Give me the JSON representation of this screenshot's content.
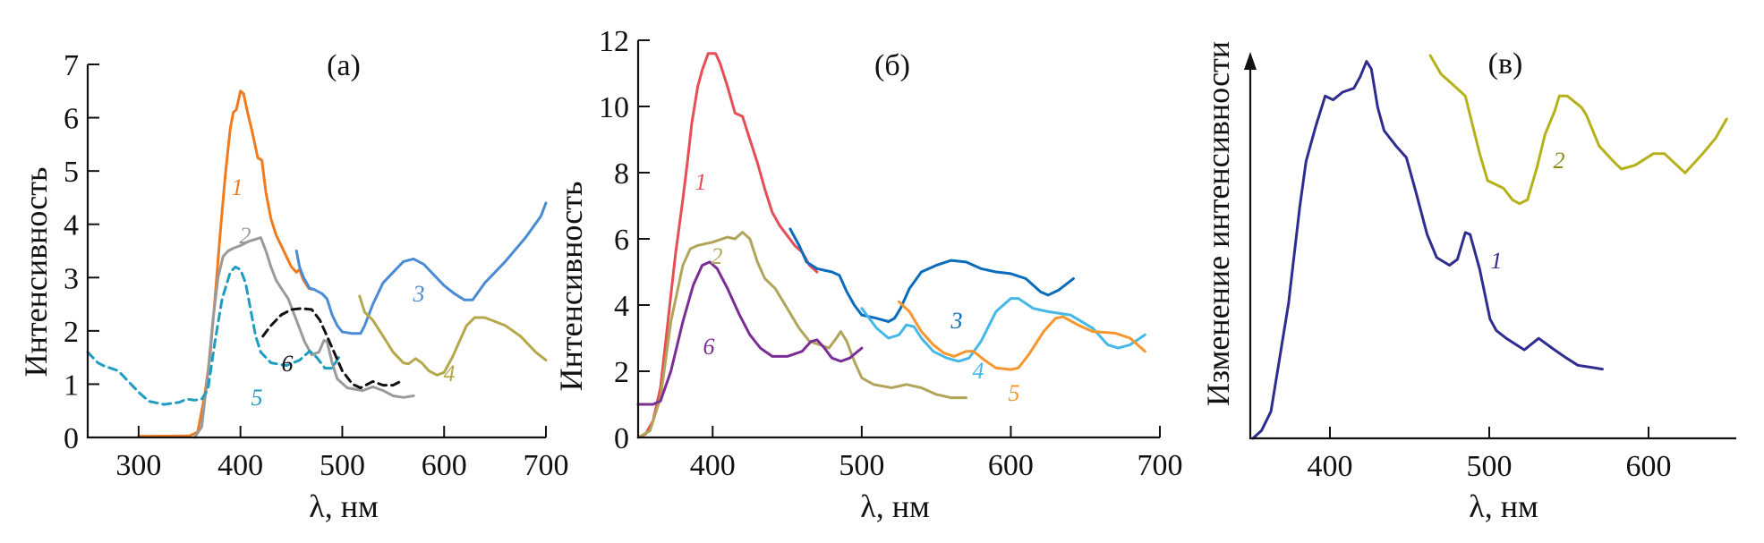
{
  "chart_data": [
    {
      "type": "line",
      "panel_label": "(а)",
      "xlabel": "λ, нм",
      "ylabel": "Интенсивность",
      "xlim": [
        250,
        700
      ],
      "ylim": [
        0,
        7
      ],
      "xticks": [
        300,
        400,
        500,
        600,
        700
      ],
      "yticks": [
        0,
        1,
        2,
        3,
        4,
        5,
        6,
        7
      ],
      "grid": false,
      "series": [
        {
          "name": "1",
          "color": "#f07a1e",
          "dashed": false,
          "x": [
            300,
            350,
            358,
            365,
            370,
            375,
            380,
            385,
            390,
            393,
            396,
            400,
            403,
            407,
            412,
            417,
            421,
            425,
            430,
            435,
            440,
            445,
            450,
            455,
            458,
            462,
            467,
            470
          ],
          "y": [
            0.02,
            0.03,
            0.1,
            0.8,
            1.5,
            2.6,
            3.8,
            4.9,
            5.8,
            6.1,
            6.15,
            6.5,
            6.45,
            6.1,
            5.7,
            5.25,
            5.2,
            4.6,
            4.1,
            3.8,
            3.6,
            3.4,
            3.2,
            3.1,
            3.15,
            2.95,
            2.8,
            2.78
          ]
        },
        {
          "name": "2",
          "color": "#9a9a9a",
          "dashed": false,
          "x": [
            355,
            362,
            368,
            373,
            378,
            383,
            388,
            393,
            400,
            408,
            415,
            420,
            425,
            430,
            435,
            440,
            447,
            455,
            463,
            470,
            477,
            482,
            485,
            490,
            495,
            505,
            520,
            530,
            540,
            550,
            560,
            570
          ],
          "y": [
            0.0,
            0.2,
            1.2,
            2.2,
            3.0,
            3.4,
            3.5,
            3.55,
            3.6,
            3.68,
            3.72,
            3.75,
            3.5,
            3.2,
            2.95,
            2.8,
            2.6,
            2.2,
            1.8,
            1.55,
            1.6,
            1.82,
            1.8,
            1.4,
            1.1,
            0.93,
            0.88,
            0.95,
            0.88,
            0.78,
            0.75,
            0.78
          ]
        },
        {
          "name": "3",
          "color": "#4a8bd4",
          "dashed": false,
          "x": [
            455,
            458,
            462,
            468,
            472,
            480,
            485,
            490,
            495,
            500,
            510,
            518,
            522,
            530,
            540,
            550,
            560,
            570,
            580,
            590,
            600,
            610,
            620,
            628,
            640,
            660,
            680,
            695,
            700
          ],
          "y": [
            3.5,
            3.2,
            3.0,
            2.8,
            2.78,
            2.7,
            2.6,
            2.3,
            2.1,
            1.98,
            1.95,
            1.95,
            2.1,
            2.5,
            2.9,
            3.1,
            3.3,
            3.35,
            3.25,
            3.05,
            2.85,
            2.7,
            2.58,
            2.58,
            2.9,
            3.3,
            3.75,
            4.15,
            4.4
          ]
        },
        {
          "name": "4",
          "color": "#b5a84a",
          "dashed": false,
          "x": [
            517,
            522,
            530,
            540,
            550,
            560,
            565,
            572,
            578,
            585,
            593,
            600,
            608,
            615,
            622,
            630,
            640,
            660,
            675,
            690,
            700
          ],
          "y": [
            2.65,
            2.35,
            2.2,
            1.9,
            1.6,
            1.4,
            1.38,
            1.48,
            1.4,
            1.25,
            1.17,
            1.22,
            1.5,
            1.8,
            2.1,
            2.25,
            2.25,
            2.1,
            1.9,
            1.6,
            1.45
          ]
        },
        {
          "name": "5",
          "color": "#1e9dc0",
          "dashed": true,
          "x": [
            250,
            260,
            265,
            280,
            290,
            300,
            310,
            325,
            340,
            347,
            355,
            362,
            368,
            375,
            382,
            390,
            395,
            400,
            405,
            410,
            415,
            420,
            430,
            445,
            458,
            468,
            475,
            483,
            490,
            498
          ],
          "y": [
            1.6,
            1.4,
            1.35,
            1.25,
            1.05,
            0.85,
            0.68,
            0.62,
            0.66,
            0.72,
            0.7,
            0.72,
            0.9,
            1.8,
            2.6,
            3.1,
            3.2,
            3.15,
            2.9,
            2.4,
            1.9,
            1.6,
            1.4,
            1.35,
            1.45,
            1.62,
            1.5,
            1.3,
            1.3,
            1.55
          ]
        },
        {
          "name": "6",
          "color": "#111111",
          "dashed": true,
          "x": [
            422,
            430,
            440,
            450,
            460,
            470,
            478,
            485,
            492,
            500,
            510,
            518,
            530,
            540,
            550,
            560
          ],
          "y": [
            1.9,
            2.1,
            2.3,
            2.4,
            2.42,
            2.4,
            2.2,
            1.9,
            1.6,
            1.25,
            1.0,
            0.93,
            1.05,
            0.98,
            0.98,
            1.08
          ]
        }
      ]
    },
    {
      "type": "line",
      "panel_label": "(б)",
      "xlabel": "λ, нм",
      "ylabel": "Интенсивность",
      "xlim": [
        350,
        700
      ],
      "ylim": [
        0,
        12
      ],
      "xticks": [
        400,
        500,
        600,
        700
      ],
      "yticks": [
        0,
        2,
        4,
        6,
        8,
        10,
        12
      ],
      "grid": false,
      "series": [
        {
          "name": "1",
          "color": "#e64d55",
          "dashed": false,
          "x": [
            350,
            355,
            360,
            365,
            370,
            375,
            380,
            383,
            386,
            390,
            393,
            397,
            402,
            405,
            410,
            415,
            420,
            425,
            430,
            435,
            440,
            445,
            450,
            455,
            460,
            465,
            470
          ],
          "y": [
            0,
            0.1,
            0.5,
            1.5,
            3.5,
            5.5,
            7.2,
            8.3,
            9.5,
            10.6,
            11.1,
            11.6,
            11.6,
            11.3,
            10.6,
            9.8,
            9.7,
            9.0,
            8.3,
            7.5,
            6.8,
            6.4,
            6.1,
            5.8,
            5.6,
            5.2,
            5.0
          ]
        },
        {
          "name": "2",
          "color": "#b0a55a",
          "dashed": false,
          "x": [
            350,
            358,
            365,
            372,
            380,
            385,
            390,
            400,
            410,
            415,
            420,
            425,
            430,
            435,
            442,
            450,
            458,
            465,
            472,
            478,
            483,
            486,
            490,
            495,
            500,
            508,
            520,
            530,
            540,
            550,
            560,
            570
          ],
          "y": [
            0,
            0.2,
            1.2,
            3.5,
            5.2,
            5.7,
            5.8,
            5.9,
            6.05,
            6.0,
            6.2,
            6.0,
            5.3,
            4.8,
            4.5,
            3.9,
            3.3,
            2.9,
            2.8,
            2.7,
            3.0,
            3.2,
            2.9,
            2.3,
            1.8,
            1.6,
            1.5,
            1.6,
            1.5,
            1.3,
            1.2,
            1.2
          ]
        },
        {
          "name": "3",
          "color": "#0a6cba",
          "dashed": false,
          "x": [
            452,
            458,
            463,
            470,
            480,
            485,
            490,
            495,
            500,
            510,
            518,
            522,
            526,
            532,
            540,
            550,
            560,
            570,
            580,
            590,
            600,
            610,
            620,
            625,
            632,
            642
          ],
          "y": [
            6.3,
            5.8,
            5.3,
            5.1,
            5.0,
            4.9,
            4.4,
            4.0,
            3.7,
            3.6,
            3.5,
            3.6,
            3.9,
            4.5,
            5.0,
            5.2,
            5.35,
            5.3,
            5.1,
            5.0,
            4.95,
            4.8,
            4.4,
            4.3,
            4.45,
            4.8
          ]
        },
        {
          "name": "4",
          "color": "#45b8e8",
          "dashed": false,
          "x": [
            500,
            505,
            510,
            518,
            525,
            530,
            535,
            540,
            548,
            557,
            565,
            572,
            580,
            590,
            600,
            605,
            615,
            625,
            640,
            655,
            665,
            672,
            680,
            690
          ],
          "y": [
            3.9,
            3.6,
            3.3,
            3.0,
            3.1,
            3.4,
            3.35,
            3.0,
            2.6,
            2.4,
            2.3,
            2.4,
            2.9,
            3.8,
            4.2,
            4.2,
            3.9,
            3.8,
            3.7,
            3.3,
            2.8,
            2.7,
            2.8,
            3.1
          ]
        },
        {
          "name": "5",
          "color": "#f7962e",
          "dashed": false,
          "x": [
            525,
            532,
            540,
            548,
            555,
            562,
            570,
            575,
            582,
            590,
            600,
            605,
            612,
            622,
            630,
            635,
            645,
            655,
            670,
            680,
            690
          ],
          "y": [
            4.1,
            3.8,
            3.2,
            2.8,
            2.55,
            2.45,
            2.6,
            2.6,
            2.35,
            2.1,
            2.05,
            2.1,
            2.5,
            3.2,
            3.6,
            3.65,
            3.4,
            3.2,
            3.15,
            3.0,
            2.6
          ]
        },
        {
          "name": "6",
          "color": "#7b2d96",
          "dashed": false,
          "x": [
            350,
            360,
            365,
            372,
            380,
            387,
            393,
            398,
            403,
            410,
            418,
            425,
            432,
            440,
            450,
            460,
            466,
            470,
            475,
            480,
            486,
            492,
            500
          ],
          "y": [
            1.0,
            1.0,
            1.1,
            2.0,
            3.5,
            4.6,
            5.2,
            5.3,
            5.1,
            4.5,
            3.7,
            3.1,
            2.7,
            2.45,
            2.45,
            2.6,
            2.9,
            2.95,
            2.7,
            2.4,
            2.3,
            2.4,
            2.7
          ]
        }
      ]
    },
    {
      "type": "line",
      "panel_label": "(в)",
      "xlabel": "λ, нм",
      "ylabel": "Изменение интенсивности",
      "xlim": [
        350,
        650
      ],
      "ylim": [
        0,
        100
      ],
      "y_units": "relative (no tick labels)",
      "xticks": [
        400,
        500,
        600
      ],
      "yticks": [],
      "grid": false,
      "series": [
        {
          "name": "1",
          "color": "#2e2d8f",
          "dashed": false,
          "x": [
            351.7,
            357,
            363,
            368.5,
            374,
            381,
            385,
            391,
            397,
            402,
            408,
            415,
            419,
            423,
            426,
            430,
            434,
            441.5,
            448,
            454,
            461,
            467,
            475,
            480,
            485,
            488,
            494,
            500.5,
            504.5,
            510.7,
            522,
            531,
            541,
            548,
            555.6,
            571
          ],
          "y": [
            0,
            2,
            7,
            21,
            35,
            60,
            72,
            81,
            89,
            88,
            90,
            91,
            94,
            98,
            96,
            86,
            80,
            76,
            73,
            64,
            53,
            47,
            45,
            46.5,
            53.5,
            53,
            44,
            31,
            28,
            26,
            23,
            26,
            23,
            21,
            19,
            18
          ]
        },
        {
          "name": "2",
          "color": "#b5b11a",
          "dashed": false,
          "x": [
            463,
            469.7,
            477,
            485,
            488,
            494,
            499,
            509,
            514.6,
            519,
            524,
            530,
            535,
            541,
            544,
            549,
            558,
            561,
            569,
            578,
            583,
            591.6,
            603,
            610,
            623,
            634,
            642,
            649
          ],
          "y": [
            99.5,
            94.7,
            92,
            89,
            84,
            74,
            67,
            65,
            62,
            61,
            62,
            70.5,
            79,
            85,
            89,
            89,
            86,
            84,
            76,
            72,
            70,
            71,
            74,
            74,
            69,
            74,
            78,
            83
          ]
        }
      ]
    }
  ]
}
